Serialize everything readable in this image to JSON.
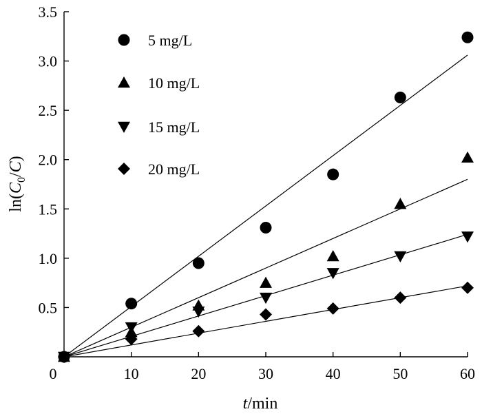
{
  "chart_data": {
    "type": "scatter",
    "title": "",
    "xlabel_italic": "t",
    "xlabel_rest": "/min",
    "ylabel_prefix": "ln(",
    "ylabel_c": "C",
    "ylabel_sub": "0",
    "ylabel_slash": "/",
    "ylabel_c2": "C",
    "ylabel_suffix": ")",
    "xlim": [
      0,
      60
    ],
    "ylim": [
      0,
      3.5
    ],
    "xticks": [
      0,
      10,
      20,
      30,
      40,
      50,
      60
    ],
    "xtick_labels": [
      "0",
      "10",
      "20",
      "30",
      "40",
      "50",
      "60"
    ],
    "yticks": [
      0.5,
      1.0,
      1.5,
      2.0,
      2.5,
      3.0,
      3.5
    ],
    "ytick_labels": [
      "0.5",
      "1.0",
      "1.5",
      "2.0",
      "2.5",
      "3.0",
      "3.5"
    ],
    "grid": false,
    "legend_position": "top-left",
    "series": [
      {
        "name": "5 mg/L",
        "marker": "circle",
        "x": [
          0,
          10,
          20,
          30,
          40,
          50,
          60
        ],
        "y": [
          0,
          0.54,
          0.95,
          1.31,
          1.85,
          2.63,
          3.24
        ],
        "fit_slope": 0.051
      },
      {
        "name": "10 mg/L",
        "marker": "triangle-up",
        "x": [
          0,
          10,
          20,
          30,
          40,
          50,
          60
        ],
        "y": [
          0,
          0.25,
          0.52,
          0.75,
          1.02,
          1.55,
          2.02
        ],
        "fit_slope": 0.03
      },
      {
        "name": "15 mg/L",
        "marker": "triangle-down",
        "x": [
          0,
          10,
          20,
          30,
          40,
          50,
          60
        ],
        "y": [
          0,
          0.3,
          0.46,
          0.6,
          0.85,
          1.02,
          1.22
        ],
        "fit_slope": 0.0207
      },
      {
        "name": "20 mg/L",
        "marker": "diamond",
        "x": [
          0,
          10,
          20,
          30,
          40,
          50,
          60
        ],
        "y": [
          0,
          0.18,
          0.26,
          0.43,
          0.49,
          0.6,
          0.7
        ],
        "fit_slope": 0.012
      }
    ]
  }
}
